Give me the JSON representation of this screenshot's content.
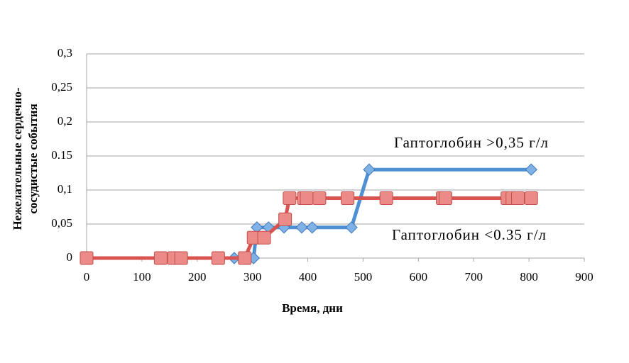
{
  "chart_data": {
    "type": "line",
    "x_label": "Время, дни",
    "y_label": [
      "Нежелательные сердечно-",
      "сосудистые события"
    ],
    "annotations": [
      "Гаптоглобин >0,35 г/л",
      "Гаптоглобин <0.35 г/л"
    ],
    "xlim": [
      0,
      900
    ],
    "xticks": [
      0,
      100,
      200,
      300,
      400,
      500,
      600,
      700,
      800,
      900
    ],
    "ylim": [
      0,
      0.3
    ],
    "yticks": [
      0,
      {
        "value": 0.05,
        "label": "0,05"
      },
      {
        "value": 0.1,
        "label": "0,1"
      },
      0.15,
      {
        "value": 0.2,
        "label": "0,2"
      },
      {
        "value": 0.25,
        "label": "0,25"
      },
      {
        "value": 0.3,
        "label": "0,3"
      }
    ],
    "grid": true,
    "series": [
      {
        "color": "#4f8fd4",
        "marker": "diamond",
        "x": [
          0,
          267,
          289,
          302,
          308,
          329,
          357,
          389,
          408,
          479,
          511,
          804
        ],
        "values": [
          0,
          0,
          0,
          0,
          0.045,
          0.045,
          0.045,
          0.045,
          0.045,
          0.045,
          0.13,
          0.13
        ]
      },
      {
        "color": "#d9534f",
        "marker": "square",
        "x": [
          0,
          134,
          158,
          171,
          238,
          286,
          302,
          321,
          359,
          367,
          393,
          398,
          421,
          472,
          542,
          644,
          649,
          761,
          770,
          780,
          804
        ],
        "values": [
          0,
          0,
          0,
          0,
          0,
          0,
          0.03,
          0.03,
          0.057,
          0.088,
          0.088,
          0.088,
          0.088,
          0.088,
          0.088,
          0.088,
          0.088,
          0.088,
          0.088,
          0.088,
          0.088
        ]
      }
    ]
  }
}
